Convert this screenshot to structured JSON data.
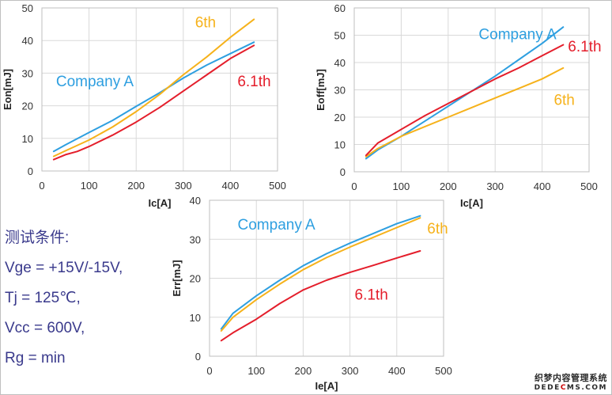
{
  "colors": {
    "company_a": "#2e9fe0",
    "sixth": "#f6b21b",
    "sixth_one": "#e41e2b"
  },
  "conditions": {
    "title": "测试条件:",
    "vge": "Vge = +15V/-15V,",
    "tj": "Tj = 125℃,",
    "vcc": "Vcc = 600V,",
    "rg": "Rg = min"
  },
  "watermark": {
    "line1": "织梦内容管理系统",
    "line2_pre": "DEDE",
    "line2_red": "C",
    "line2_post": "MS.COM"
  },
  "chart_data": [
    {
      "id": "eon",
      "type": "line",
      "xlabel": "Ic[A]",
      "ylabel": "Eon[mJ]",
      "xlim": [
        0,
        500
      ],
      "ylim": [
        0,
        50
      ],
      "xticks": [
        0,
        100,
        200,
        300,
        400,
        500
      ],
      "yticks": [
        0,
        10,
        20,
        30,
        40,
        50
      ],
      "grid": true,
      "series": [
        {
          "name": "Company A",
          "color": "#2e9fe0",
          "points": [
            [
              25,
              6
            ],
            [
              50,
              8
            ],
            [
              100,
              11.8
            ],
            [
              150,
              15.5
            ],
            [
              200,
              19.8
            ],
            [
              250,
              24
            ],
            [
              300,
              28.5
            ],
            [
              350,
              32.5
            ],
            [
              400,
              36
            ],
            [
              450,
              39.5
            ]
          ]
        },
        {
          "name": "6th",
          "color": "#f6b21b",
          "points": [
            [
              25,
              4.5
            ],
            [
              50,
              6.2
            ],
            [
              100,
              9.5
            ],
            [
              150,
              13.5
            ],
            [
              200,
              18.2
            ],
            [
              250,
              23.5
            ],
            [
              300,
              29.5
            ],
            [
              350,
              35
            ],
            [
              400,
              41
            ],
            [
              450,
              46.5
            ]
          ]
        },
        {
          "name": "6.1th",
          "color": "#e41e2b",
          "points": [
            [
              25,
              3.5
            ],
            [
              50,
              5
            ],
            [
              75,
              6
            ],
            [
              100,
              7.5
            ],
            [
              150,
              11
            ],
            [
              200,
              15
            ],
            [
              250,
              19.5
            ],
            [
              300,
              24.5
            ],
            [
              350,
              29.5
            ],
            [
              400,
              34.5
            ],
            [
              450,
              38.5
            ]
          ]
        }
      ],
      "annotations": [
        {
          "text": "Company A",
          "color": "#2e9fe0",
          "x": 30,
          "y": 26
        },
        {
          "text": "6th",
          "color": "#f6b21b",
          "x": 325,
          "y": 44
        },
        {
          "text": "6.1th",
          "color": "#e41e2b",
          "x": 415,
          "y": 26
        }
      ]
    },
    {
      "id": "eoff",
      "type": "line",
      "xlabel": "Ic[A]",
      "ylabel": "Eoff[mJ]",
      "xlim": [
        0,
        500
      ],
      "ylim": [
        0,
        60
      ],
      "xticks": [
        0,
        100,
        200,
        300,
        400,
        500
      ],
      "yticks": [
        0,
        10,
        20,
        30,
        40,
        50,
        60
      ],
      "grid": true,
      "series": [
        {
          "name": "Company A",
          "color": "#2e9fe0",
          "points": [
            [
              25,
              4.8
            ],
            [
              50,
              8
            ],
            [
              100,
              13
            ],
            [
              150,
              18.5
            ],
            [
              200,
              24
            ],
            [
              250,
              29.5
            ],
            [
              300,
              35
            ],
            [
              350,
              41
            ],
            [
              400,
              47
            ],
            [
              445,
              53
            ]
          ]
        },
        {
          "name": "6th",
          "color": "#f6b21b",
          "points": [
            [
              25,
              5.5
            ],
            [
              50,
              8.5
            ],
            [
              100,
              13
            ],
            [
              150,
              16.5
            ],
            [
              200,
              20
            ],
            [
              250,
              23.5
            ],
            [
              300,
              27
            ],
            [
              350,
              30.5
            ],
            [
              400,
              34
            ],
            [
              445,
              38
            ]
          ]
        },
        {
          "name": "6.1th",
          "color": "#e41e2b",
          "points": [
            [
              25,
              6
            ],
            [
              50,
              10.5
            ],
            [
              100,
              15.5
            ],
            [
              150,
              20.5
            ],
            [
              200,
              25
            ],
            [
              250,
              29.5
            ],
            [
              300,
              34
            ],
            [
              350,
              38
            ],
            [
              400,
              42.5
            ],
            [
              445,
              46.5
            ]
          ]
        }
      ],
      "annotations": [
        {
          "text": "Company A",
          "color": "#2e9fe0",
          "x": 265,
          "y": 48.5
        },
        {
          "text": "6.1th",
          "color": "#e41e2b",
          "x": 455,
          "y": 44
        },
        {
          "text": "6th",
          "color": "#f6b21b",
          "x": 425,
          "y": 24.5
        }
      ]
    },
    {
      "id": "err",
      "type": "line",
      "xlabel": "Ie[A]",
      "ylabel": "Err[mJ]",
      "xlim": [
        0,
        500
      ],
      "ylim": [
        0,
        40
      ],
      "xticks": [
        0,
        100,
        200,
        300,
        400,
        500
      ],
      "yticks": [
        0,
        10,
        20,
        30,
        40
      ],
      "grid": true,
      "series": [
        {
          "name": "Company A",
          "color": "#2e9fe0",
          "points": [
            [
              25,
              7
            ],
            [
              50,
              11
            ],
            [
              100,
              15.5
            ],
            [
              150,
              19.5
            ],
            [
              200,
              23.2
            ],
            [
              250,
              26.3
            ],
            [
              300,
              29
            ],
            [
              350,
              31.5
            ],
            [
              400,
              34
            ],
            [
              450,
              36
            ]
          ]
        },
        {
          "name": "6th",
          "color": "#f6b21b",
          "points": [
            [
              25,
              6.5
            ],
            [
              50,
              10
            ],
            [
              100,
              14.5
            ],
            [
              150,
              18.5
            ],
            [
              200,
              22.2
            ],
            [
              250,
              25.3
            ],
            [
              300,
              28
            ],
            [
              350,
              30.5
            ],
            [
              400,
              33
            ],
            [
              450,
              35.5
            ]
          ]
        },
        {
          "name": "6.1th",
          "color": "#e41e2b",
          "points": [
            [
              25,
              4
            ],
            [
              50,
              6
            ],
            [
              100,
              9.5
            ],
            [
              150,
              13.5
            ],
            [
              200,
              17
            ],
            [
              250,
              19.5
            ],
            [
              300,
              21.5
            ],
            [
              350,
              23.3
            ],
            [
              400,
              25.2
            ],
            [
              450,
              27
            ]
          ]
        }
      ],
      "annotations": [
        {
          "text": "Company A",
          "color": "#2e9fe0",
          "x": 60,
          "y": 32.5
        },
        {
          "text": "6th",
          "color": "#f6b21b",
          "x": 465,
          "y": 31.5
        },
        {
          "text": "6.1th",
          "color": "#e41e2b",
          "x": 310,
          "y": 14.5
        }
      ]
    }
  ]
}
